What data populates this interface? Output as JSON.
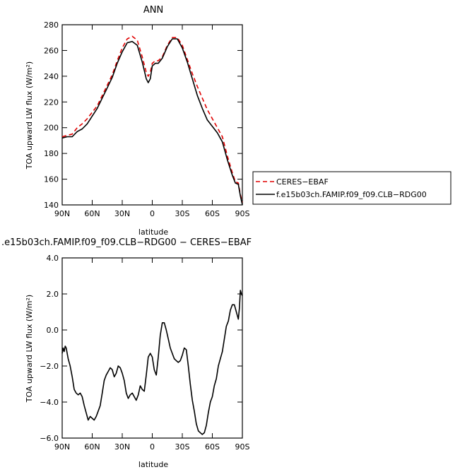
{
  "chart_data": [
    {
      "type": "line",
      "title": "ANN",
      "xlabel": "latitude",
      "ylabel": "TOA upward LW flux (W/m²)",
      "xlim": [
        90,
        -90
      ],
      "ylim": [
        140,
        280
      ],
      "x_ticks": [
        90,
        60,
        30,
        0,
        -30,
        -60,
        -90
      ],
      "x_tick_labels": [
        "90N",
        "60N",
        "30N",
        "0",
        "30S",
        "60S",
        "90S"
      ],
      "y_ticks": [
        140,
        160,
        180,
        200,
        220,
        240,
        260,
        280
      ],
      "y_tick_labels": [
        "140",
        "160",
        "180",
        "200",
        "220",
        "240",
        "260",
        "280"
      ],
      "legend_position": "right",
      "series": [
        {
          "name": "CERES−EBAF",
          "color": "#e00000",
          "dash": "dashed",
          "points": [
            [
              90,
              193
            ],
            [
              85,
              194
            ],
            [
              80,
              195
            ],
            [
              75,
              200
            ],
            [
              70,
              203
            ],
            [
              65,
              207
            ],
            [
              60,
              212
            ],
            [
              55,
              217
            ],
            [
              50,
              225
            ],
            [
              45,
              233
            ],
            [
              40,
              241
            ],
            [
              35,
              252
            ],
            [
              30,
              262
            ],
            [
              25,
              269
            ],
            [
              20,
              271
            ],
            [
              15,
              268
            ],
            [
              10,
              255
            ],
            [
              6,
              243
            ],
            [
              4,
              240
            ],
            [
              2,
              243
            ],
            [
              0,
              250
            ],
            [
              -3,
              252
            ],
            [
              -6,
              252
            ],
            [
              -10,
              255
            ],
            [
              -15,
              264
            ],
            [
              -20,
              270
            ],
            [
              -25,
              270
            ],
            [
              -30,
              264
            ],
            [
              -35,
              253
            ],
            [
              -40,
              242
            ],
            [
              -45,
              232
            ],
            [
              -50,
              223
            ],
            [
              -55,
              214
            ],
            [
              -60,
              207
            ],
            [
              -65,
              200
            ],
            [
              -70,
              193
            ],
            [
              -75,
              178
            ],
            [
              -80,
              165
            ],
            [
              -83,
              158
            ],
            [
              -86,
              157
            ],
            [
              -88,
              148
            ],
            [
              -90,
              142
            ]
          ]
        },
        {
          "name": "f.e15b03ch.FAMIP.f09_f09.CLB−RDG00",
          "color": "#000000",
          "dash": "solid",
          "points": [
            [
              90,
              192
            ],
            [
              85,
              193
            ],
            [
              80,
              193
            ],
            [
              75,
              197
            ],
            [
              70,
              199
            ],
            [
              65,
              203
            ],
            [
              60,
              209
            ],
            [
              55,
              215
            ],
            [
              50,
              223
            ],
            [
              45,
              231
            ],
            [
              40,
              239
            ],
            [
              35,
              250
            ],
            [
              30,
              259
            ],
            [
              25,
              266
            ],
            [
              20,
              267
            ],
            [
              15,
              264
            ],
            [
              10,
              251
            ],
            [
              6,
              238
            ],
            [
              4,
              235
            ],
            [
              2,
              238
            ],
            [
              0,
              248
            ],
            [
              -3,
              250
            ],
            [
              -6,
              250
            ],
            [
              -10,
              254
            ],
            [
              -15,
              263
            ],
            [
              -20,
              269
            ],
            [
              -25,
              269
            ],
            [
              -30,
              262
            ],
            [
              -35,
              251
            ],
            [
              -40,
              238
            ],
            [
              -45,
              225
            ],
            [
              -50,
              215
            ],
            [
              -55,
              206
            ],
            [
              -60,
              201
            ],
            [
              -65,
              196
            ],
            [
              -70,
              189
            ],
            [
              -75,
              175
            ],
            [
              -80,
              163
            ],
            [
              -83,
              157
            ],
            [
              -86,
              156
            ],
            [
              -88,
              147
            ],
            [
              -90,
              140
            ]
          ]
        }
      ]
    },
    {
      "type": "line",
      "title": ".e15b03ch.FAMIP.f09_f09.CLB−RDG00  −  CERES−EBAF",
      "xlabel": "latitude",
      "ylabel": "TOA upward LW flux (W/m²)",
      "xlim": [
        90,
        -90
      ],
      "ylim": [
        -6.0,
        4.0
      ],
      "x_ticks": [
        90,
        60,
        30,
        0,
        -30,
        -60,
        -90
      ],
      "x_tick_labels": [
        "90N",
        "60N",
        "30N",
        "0",
        "30S",
        "60S",
        "90S"
      ],
      "y_ticks": [
        -6,
        -4,
        -2,
        0,
        2,
        4
      ],
      "y_tick_labels": [
        "−6.0",
        "−4.0",
        "−2.0",
        "0.0",
        "2.0",
        "4.0"
      ],
      "series": [
        {
          "color": "#000000",
          "dash": "solid",
          "points": [
            [
              90,
              -1.3
            ],
            [
              89,
              -1.0
            ],
            [
              88,
              -1.2
            ],
            [
              87,
              -0.9
            ],
            [
              86,
              -1.0
            ],
            [
              84,
              -1.6
            ],
            [
              82,
              -2.0
            ],
            [
              80,
              -2.6
            ],
            [
              78,
              -3.3
            ],
            [
              76,
              -3.5
            ],
            [
              74,
              -3.6
            ],
            [
              72,
              -3.5
            ],
            [
              70,
              -3.7
            ],
            [
              68,
              -4.2
            ],
            [
              66,
              -4.6
            ],
            [
              64,
              -5.0
            ],
            [
              62,
              -4.8
            ],
            [
              60,
              -4.9
            ],
            [
              58,
              -5.0
            ],
            [
              56,
              -4.8
            ],
            [
              54,
              -4.5
            ],
            [
              52,
              -4.2
            ],
            [
              50,
              -3.5
            ],
            [
              48,
              -2.8
            ],
            [
              46,
              -2.5
            ],
            [
              44,
              -2.3
            ],
            [
              42,
              -2.1
            ],
            [
              40,
              -2.2
            ],
            [
              38,
              -2.6
            ],
            [
              36,
              -2.4
            ],
            [
              34,
              -2.0
            ],
            [
              32,
              -2.1
            ],
            [
              30,
              -2.4
            ],
            [
              28,
              -2.8
            ],
            [
              26,
              -3.5
            ],
            [
              24,
              -3.8
            ],
            [
              22,
              -3.6
            ],
            [
              20,
              -3.5
            ],
            [
              18,
              -3.7
            ],
            [
              16,
              -3.9
            ],
            [
              14,
              -3.6
            ],
            [
              12,
              -3.1
            ],
            [
              10,
              -3.3
            ],
            [
              8,
              -3.4
            ],
            [
              6,
              -2.5
            ],
            [
              4,
              -1.5
            ],
            [
              2,
              -1.3
            ],
            [
              0,
              -1.5
            ],
            [
              -2,
              -2.2
            ],
            [
              -4,
              -2.5
            ],
            [
              -6,
              -1.5
            ],
            [
              -8,
              -0.3
            ],
            [
              -10,
              0.4
            ],
            [
              -12,
              0.4
            ],
            [
              -14,
              0.0
            ],
            [
              -16,
              -0.5
            ],
            [
              -18,
              -1.0
            ],
            [
              -20,
              -1.3
            ],
            [
              -22,
              -1.6
            ],
            [
              -24,
              -1.7
            ],
            [
              -26,
              -1.8
            ],
            [
              -28,
              -1.7
            ],
            [
              -30,
              -1.4
            ],
            [
              -32,
              -1.0
            ],
            [
              -34,
              -1.1
            ],
            [
              -36,
              -2.0
            ],
            [
              -38,
              -3.0
            ],
            [
              -40,
              -3.9
            ],
            [
              -42,
              -4.5
            ],
            [
              -44,
              -5.2
            ],
            [
              -46,
              -5.6
            ],
            [
              -48,
              -5.7
            ],
            [
              -50,
              -5.8
            ],
            [
              -52,
              -5.7
            ],
            [
              -54,
              -5.3
            ],
            [
              -56,
              -4.6
            ],
            [
              -58,
              -4.0
            ],
            [
              -60,
              -3.7
            ],
            [
              -62,
              -3.1
            ],
            [
              -64,
              -2.7
            ],
            [
              -66,
              -2.0
            ],
            [
              -68,
              -1.6
            ],
            [
              -70,
              -1.2
            ],
            [
              -72,
              -0.5
            ],
            [
              -74,
              0.2
            ],
            [
              -76,
              0.5
            ],
            [
              -78,
              1.1
            ],
            [
              -80,
              1.4
            ],
            [
              -82,
              1.4
            ],
            [
              -84,
              1.0
            ],
            [
              -86,
              0.6
            ],
            [
              -87,
              1.2
            ],
            [
              -88,
              2.2
            ],
            [
              -89,
              2.0
            ],
            [
              -90,
              1.9
            ]
          ]
        }
      ]
    }
  ]
}
